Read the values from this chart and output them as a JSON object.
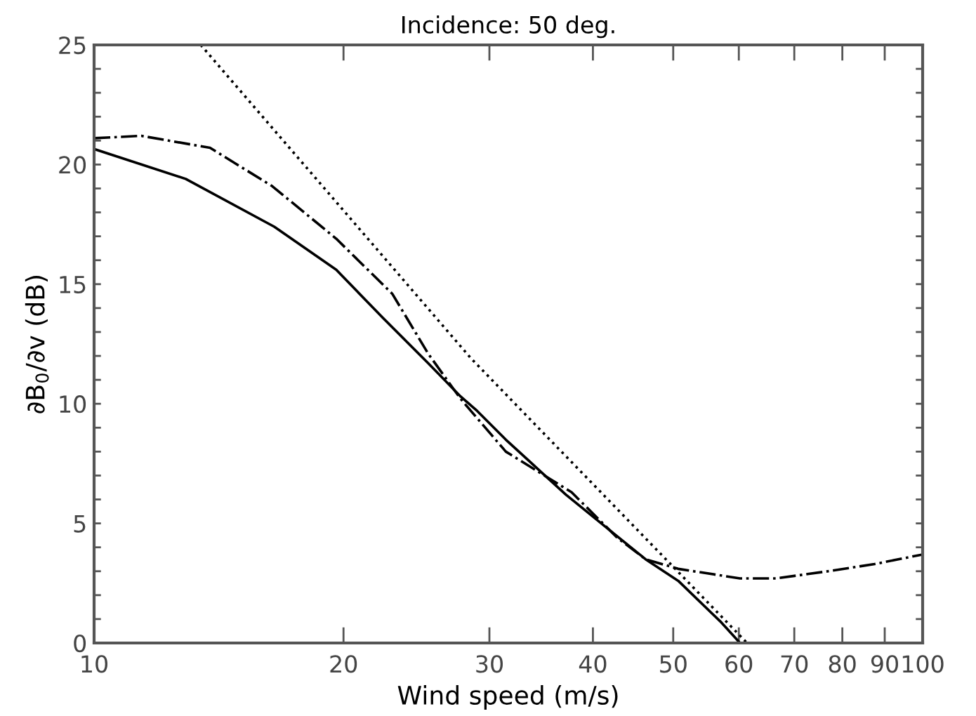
{
  "chart_data": {
    "type": "line",
    "title": "Incidence: 50 deg.",
    "xlabel": "Wind speed (m/s)",
    "ylabel": "∂B$_{0}$/∂v (dB)",
    "log": "x",
    "xlim": [
      10,
      100
    ],
    "ylim": [
      0,
      25
    ],
    "xticks": [
      10,
      20,
      30,
      40,
      50,
      60,
      70,
      80,
      90,
      100
    ],
    "yticks": [
      0,
      {
        "value": 1,
        "label": null
      },
      {
        "value": 2,
        "label": null
      },
      {
        "value": 3,
        "label": null
      },
      {
        "value": 4,
        "label": null
      },
      5,
      {
        "value": 6,
        "label": null
      },
      {
        "value": 7,
        "label": null
      },
      {
        "value": 8,
        "label": null
      },
      {
        "value": 9,
        "label": null
      },
      10,
      {
        "value": 11,
        "label": null
      },
      {
        "value": 12,
        "label": null
      },
      {
        "value": 13,
        "label": null
      },
      {
        "value": 14,
        "label": null
      },
      15,
      {
        "value": 16,
        "label": null
      },
      {
        "value": 17,
        "label": null
      },
      {
        "value": 18,
        "label": null
      },
      {
        "value": 19,
        "label": null
      },
      20,
      {
        "value": 21,
        "label": null
      },
      {
        "value": 22,
        "label": null
      },
      {
        "value": 23,
        "label": null
      },
      {
        "value": 24,
        "label": null
      },
      25
    ],
    "grid": false,
    "legend": false,
    "series": [
      {
        "color": "#000000",
        "line_style": "solid",
        "x": [
          10,
          12.9,
          16.5,
          19.6,
          22.3,
          25.3,
          27.7,
          29.0,
          31.4,
          37.1,
          46.3,
          50.7,
          57.0,
          60.2
        ],
        "values": [
          20.65,
          19.4,
          17.4,
          15.6,
          13.6,
          11.7,
          10.3,
          9.7,
          8.5,
          6.2,
          3.5,
          2.6,
          0.9,
          0
        ]
      },
      {
        "color": "#000000",
        "line_style": "dashdot",
        "x": [
          10,
          11.4,
          13.8,
          16.4,
          19.6,
          22.9,
          25.3,
          27.7,
          31.4,
          37.7,
          42.8,
          46.3,
          50.7,
          60.2,
          66.6,
          76.9,
          87.5,
          100
        ],
        "values": [
          21.1,
          21.2,
          20.7,
          19.1,
          16.9,
          14.6,
          12.1,
          10.2,
          8.0,
          6.3,
          4.4,
          3.5,
          3.1,
          2.7,
          2.7,
          3.0,
          3.3,
          3.7
        ]
      },
      {
        "color": "#000000",
        "line_style": "dotted",
        "x": [
          13.45,
          28.5,
          61.4
        ],
        "values": [
          25,
          11.9,
          0
        ]
      }
    ]
  }
}
